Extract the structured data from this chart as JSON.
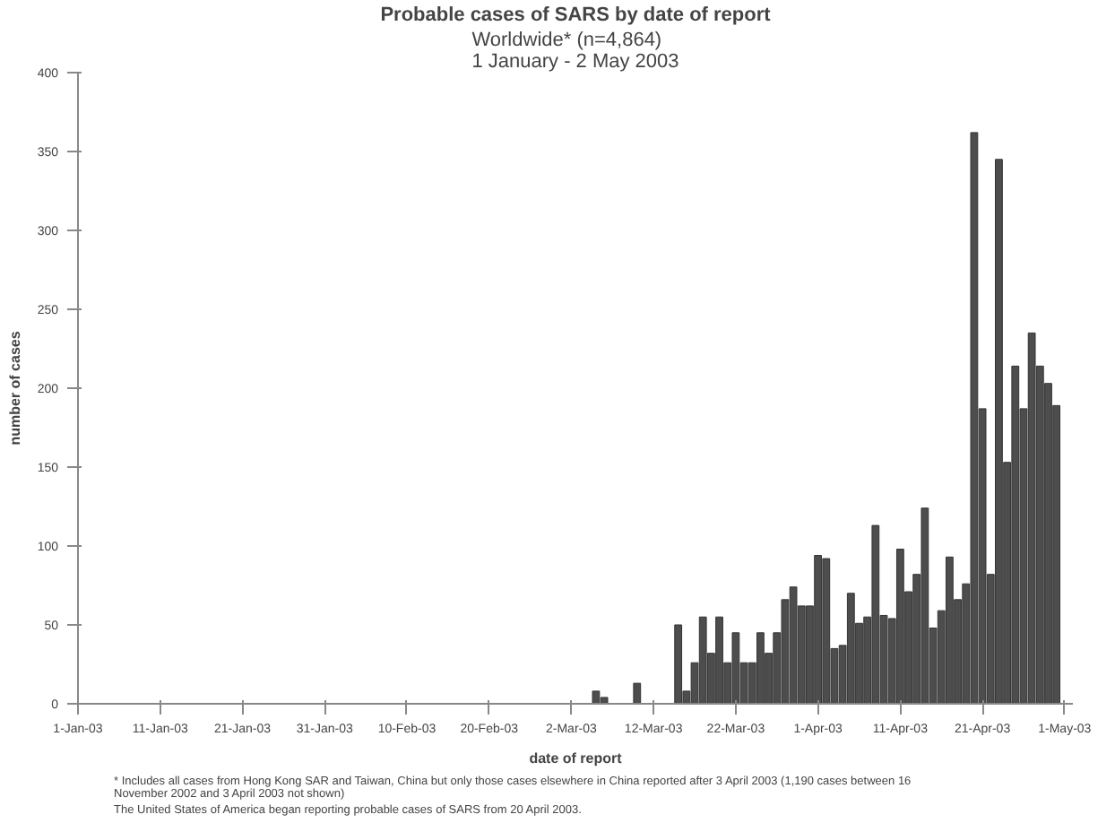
{
  "chart_data": {
    "type": "bar",
    "title": "Probable cases of SARS by date of report",
    "subtitle": "Worldwide* (n=4,864)\n1 January - 2 May 2003",
    "xlabel": "date of report",
    "ylabel": "number of cases",
    "annotations": [
      "* Includes all cases from Hong Kong SAR and Taiwan, China but only those cases elsewhere in China reported after 3 April 2003 (1,190 cases between 16 November 2002 and 3 April 2003 not shown)",
      "The United States of America began reporting probable cases of SARS from 20 April 2003."
    ],
    "x": [
      "2003-03-05",
      "2003-03-06",
      "2003-03-10",
      "2003-03-15",
      "2003-03-16",
      "2003-03-17",
      "2003-03-18",
      "2003-03-19",
      "2003-03-20",
      "2003-03-21",
      "2003-03-22",
      "2003-03-23",
      "2003-03-24",
      "2003-03-25",
      "2003-03-26",
      "2003-03-27",
      "2003-03-28",
      "2003-03-29",
      "2003-03-30",
      "2003-03-31",
      "2003-04-01",
      "2003-04-02",
      "2003-04-03",
      "2003-04-04",
      "2003-04-05",
      "2003-04-06",
      "2003-04-07",
      "2003-04-08",
      "2003-04-09",
      "2003-04-10",
      "2003-04-11",
      "2003-04-12",
      "2003-04-13",
      "2003-04-14",
      "2003-04-15",
      "2003-04-16",
      "2003-04-17",
      "2003-04-18",
      "2003-04-19",
      "2003-04-20",
      "2003-04-21",
      "2003-04-22",
      "2003-04-23",
      "2003-04-24",
      "2003-04-25",
      "2003-04-26",
      "2003-04-27",
      "2003-04-28",
      "2003-04-29",
      "2003-04-30"
    ],
    "series": [
      {
        "color": "#4d4d4d",
        "values": [
          8,
          4,
          13,
          50,
          8,
          26,
          55,
          32,
          55,
          26,
          45,
          26,
          26,
          45,
          32,
          45,
          66,
          74,
          62,
          62,
          94,
          92,
          35,
          37,
          70,
          51,
          55,
          113,
          56,
          54,
          98,
          71,
          82,
          124,
          48,
          59,
          93,
          66,
          76,
          362,
          187,
          82,
          345,
          153,
          214,
          187,
          235,
          214,
          203,
          189
        ]
      }
    ],
    "xlim": [
      "2003-01-01",
      "2003-05-02"
    ],
    "xticks": [
      {
        "value": "2003-01-01",
        "label": "1-Jan-03"
      },
      {
        "value": "2003-01-11",
        "label": "11-Jan-03"
      },
      {
        "value": "2003-01-21",
        "label": "21-Jan-03"
      },
      {
        "value": "2003-01-31",
        "label": "31-Jan-03"
      },
      {
        "value": "2003-02-10",
        "label": "10-Feb-03"
      },
      {
        "value": "2003-02-20",
        "label": "20-Feb-03"
      },
      {
        "value": "2003-03-02",
        "label": "2-Mar-03"
      },
      {
        "value": "2003-03-12",
        "label": "12-Mar-03"
      },
      {
        "value": "2003-03-22",
        "label": "22-Mar-03"
      },
      {
        "value": "2003-04-01",
        "label": "1-Apr-03"
      },
      {
        "value": "2003-04-11",
        "label": "11-Apr-03"
      },
      {
        "value": "2003-04-21",
        "label": "21-Apr-03"
      },
      {
        "value": "2003-05-01",
        "label": "1-May-03"
      }
    ],
    "ylim": [
      0,
      400
    ],
    "yticks": [
      0,
      50,
      100,
      150,
      200,
      250,
      300,
      350,
      400
    ],
    "grid": false
  }
}
